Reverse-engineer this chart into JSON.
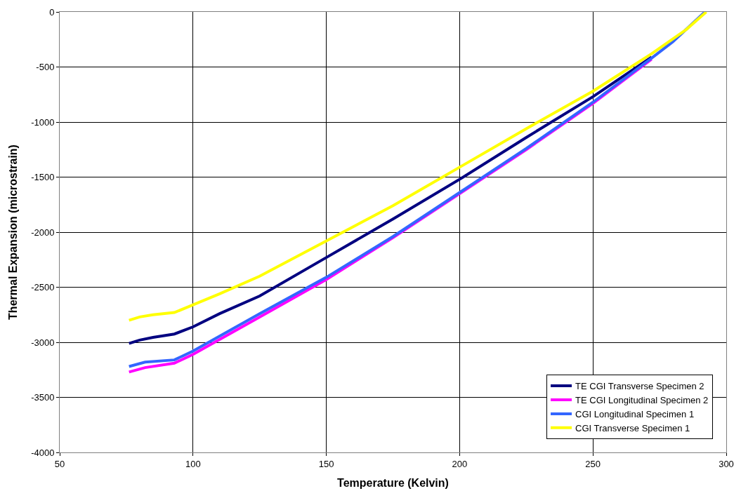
{
  "chart_data": {
    "type": "line",
    "xlabel": "Temperature (Kelvin)",
    "ylabel": "Thermal Expansion (microstrain)",
    "xlim": [
      50,
      300
    ],
    "xticks": [
      50,
      100,
      150,
      200,
      250,
      300
    ],
    "ylim": [
      -4000,
      0
    ],
    "yticks": [
      -4000,
      -3500,
      -3000,
      -2500,
      -2000,
      -1500,
      -1000,
      -500,
      0
    ],
    "grid": true,
    "legend": "bottom right",
    "marker": "none",
    "line_style": "solid",
    "series": [
      {
        "name": "TE CGI Transverse Specimen 2",
        "color": "#000080",
        "x": [
          76,
          80,
          85,
          93,
          100,
          110,
          125,
          150,
          175,
          200,
          225,
          250,
          272
        ],
        "values": [
          -3010,
          -2980,
          -2955,
          -2925,
          -2860,
          -2740,
          -2580,
          -2230,
          -1880,
          -1520,
          -1140,
          -770,
          -410
        ]
      },
      {
        "name": "TE CGI Longitudinal Specimen 2",
        "color": "#ff00ff",
        "x": [
          76,
          82,
          93,
          100,
          125,
          150,
          175,
          200,
          225,
          250,
          272
        ],
        "values": [
          -3270,
          -3230,
          -3190,
          -3110,
          -2770,
          -2430,
          -2050,
          -1650,
          -1250,
          -830,
          -430
        ]
      },
      {
        "name": "CGI Longitudinal Specimen 1",
        "color": "#3366ff",
        "x": [
          76,
          82,
          93,
          100,
          125,
          150,
          175,
          200,
          225,
          250,
          272,
          280,
          292
        ],
        "values": [
          -3220,
          -3180,
          -3160,
          -3080,
          -2740,
          -2410,
          -2040,
          -1640,
          -1240,
          -820,
          -420,
          -270,
          0
        ]
      },
      {
        "name": "CGI Transverse Specimen 1",
        "color": "#ffff00",
        "x": [
          76,
          80,
          85,
          93,
          100,
          110,
          125,
          150,
          175,
          200,
          225,
          250,
          272,
          285,
          292.5
        ],
        "values": [
          -2800,
          -2770,
          -2750,
          -2730,
          -2660,
          -2560,
          -2400,
          -2080,
          -1760,
          -1410,
          -1060,
          -720,
          -380,
          -160,
          0
        ]
      }
    ]
  }
}
